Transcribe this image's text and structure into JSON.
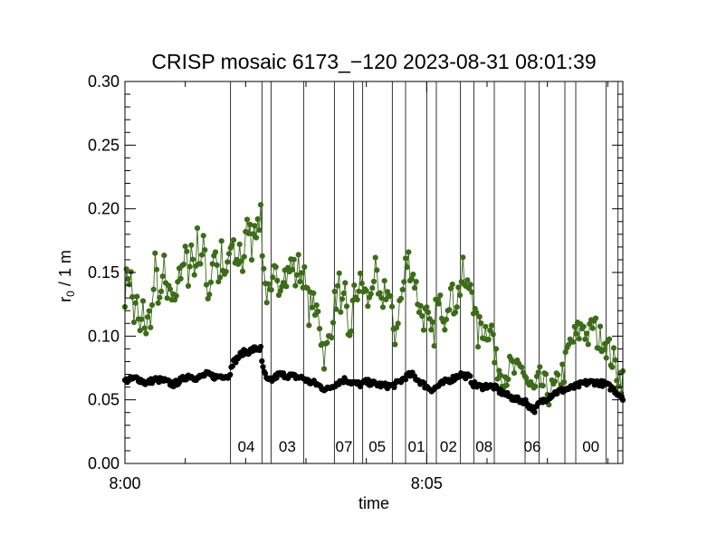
{
  "chart_data": {
    "type": "scatter",
    "title": "CRISP mosaic 6173_−120 2023-08-31 08:01:39",
    "xlabel": "time",
    "ylabel": "r₀ / 1 m",
    "x_unit": "minutes after 8:00",
    "xlim": [
      0,
      8.25
    ],
    "ylim": [
      0,
      0.3
    ],
    "x_tick_labels": [
      {
        "value": 0,
        "label": "8:00"
      },
      {
        "value": 5,
        "label": "8:05"
      }
    ],
    "x_minor_ticks": [
      1,
      2,
      3,
      4,
      6,
      7,
      8
    ],
    "y_ticks": [
      {
        "value": 0.0,
        "label": "0.00"
      },
      {
        "value": 0.05,
        "label": "0.05"
      },
      {
        "value": 0.1,
        "label": "0.10"
      },
      {
        "value": 0.15,
        "label": "0.15"
      },
      {
        "value": 0.2,
        "label": "0.20"
      },
      {
        "value": 0.25,
        "label": "0.25"
      },
      {
        "value": 0.3,
        "label": "0.30"
      }
    ],
    "vertical_lines": [
      1.75,
      2.27,
      2.42,
      2.96,
      3.47,
      3.79,
      3.94,
      4.43,
      4.65,
      5.0,
      5.16,
      5.56,
      5.78,
      6.12,
      6.63,
      6.86,
      7.29,
      7.47,
      7.97,
      8.17
    ],
    "segment_labels": [
      {
        "x": 2.01,
        "label": "04"
      },
      {
        "x": 2.69,
        "label": "03"
      },
      {
        "x": 3.63,
        "label": "07"
      },
      {
        "x": 4.18,
        "label": "05"
      },
      {
        "x": 4.83,
        "label": "01"
      },
      {
        "x": 5.36,
        "label": "02"
      },
      {
        "x": 5.95,
        "label": "08"
      },
      {
        "x": 6.75,
        "label": "06"
      },
      {
        "x": 7.72,
        "label": "00"
      }
    ],
    "series": [
      {
        "name": "green",
        "color": "#3d6b1a",
        "line": true,
        "anchors": [
          [
            0.0,
            0.135
          ],
          [
            0.05,
            0.15
          ],
          [
            0.1,
            0.145
          ],
          [
            0.15,
            0.115
          ],
          [
            0.2,
            0.125
          ],
          [
            0.25,
            0.1
          ],
          [
            0.3,
            0.12
          ],
          [
            0.35,
            0.105
          ],
          [
            0.4,
            0.115
          ],
          [
            0.45,
            0.12
          ],
          [
            0.5,
            0.155
          ],
          [
            0.55,
            0.135
          ],
          [
            0.6,
            0.125
          ],
          [
            0.65,
            0.16
          ],
          [
            0.7,
            0.12
          ],
          [
            0.75,
            0.14
          ],
          [
            0.8,
            0.125
          ],
          [
            0.85,
            0.14
          ],
          [
            0.9,
            0.155
          ],
          [
            0.95,
            0.145
          ],
          [
            1.0,
            0.165
          ],
          [
            1.05,
            0.15
          ],
          [
            1.1,
            0.17
          ],
          [
            1.15,
            0.15
          ],
          [
            1.2,
            0.175
          ],
          [
            1.25,
            0.16
          ],
          [
            1.3,
            0.175
          ],
          [
            1.35,
            0.14
          ],
          [
            1.4,
            0.135
          ],
          [
            1.45,
            0.16
          ],
          [
            1.5,
            0.17
          ],
          [
            1.55,
            0.14
          ],
          [
            1.6,
            0.165
          ],
          [
            1.65,
            0.14
          ],
          [
            1.7,
            0.155
          ],
          [
            1.74,
            0.17
          ],
          [
            1.8,
            0.165
          ],
          [
            1.85,
            0.155
          ],
          [
            1.9,
            0.17
          ],
          [
            1.95,
            0.155
          ],
          [
            2.0,
            0.175
          ],
          [
            2.05,
            0.19
          ],
          [
            2.1,
            0.17
          ],
          [
            2.15,
            0.195
          ],
          [
            2.2,
            0.18
          ],
          [
            2.25,
            0.2
          ],
          [
            2.27,
            0.175
          ],
          [
            2.32,
            0.14
          ],
          [
            2.38,
            0.13
          ],
          [
            2.42,
            0.125
          ],
          [
            2.47,
            0.145
          ],
          [
            2.52,
            0.15
          ],
          [
            2.57,
            0.14
          ],
          [
            2.62,
            0.155
          ],
          [
            2.67,
            0.145
          ],
          [
            2.72,
            0.15
          ],
          [
            2.77,
            0.16
          ],
          [
            2.82,
            0.145
          ],
          [
            2.87,
            0.155
          ],
          [
            2.92,
            0.15
          ],
          [
            2.96,
            0.15
          ],
          [
            3.0,
            0.135
          ],
          [
            3.05,
            0.12
          ],
          [
            3.1,
            0.13
          ],
          [
            3.15,
            0.115
          ],
          [
            3.2,
            0.125
          ],
          [
            3.25,
            0.1
          ],
          [
            3.3,
            0.085
          ],
          [
            3.35,
            0.09
          ],
          [
            3.4,
            0.1
          ],
          [
            3.45,
            0.12
          ],
          [
            3.5,
            0.13
          ],
          [
            3.55,
            0.14
          ],
          [
            3.6,
            0.12
          ],
          [
            3.65,
            0.13
          ],
          [
            3.7,
            0.095
          ],
          [
            3.75,
            0.11
          ],
          [
            3.79,
            0.13
          ],
          [
            3.85,
            0.135
          ],
          [
            3.9,
            0.14
          ],
          [
            3.94,
            0.14
          ],
          [
            4.0,
            0.13
          ],
          [
            4.05,
            0.125
          ],
          [
            4.1,
            0.145
          ],
          [
            4.15,
            0.15
          ],
          [
            4.2,
            0.13
          ],
          [
            4.25,
            0.12
          ],
          [
            4.3,
            0.14
          ],
          [
            4.35,
            0.135
          ],
          [
            4.4,
            0.125
          ],
          [
            4.43,
            0.11
          ],
          [
            4.48,
            0.1
          ],
          [
            4.53,
            0.12
          ],
          [
            4.58,
            0.13
          ],
          [
            4.62,
            0.14
          ],
          [
            4.65,
            0.155
          ],
          [
            4.7,
            0.16
          ],
          [
            4.75,
            0.15
          ],
          [
            4.8,
            0.145
          ],
          [
            4.85,
            0.13
          ],
          [
            4.9,
            0.12
          ],
          [
            4.95,
            0.115
          ],
          [
            5.0,
            0.115
          ],
          [
            5.04,
            0.105
          ],
          [
            5.08,
            0.1
          ],
          [
            5.12,
            0.1
          ],
          [
            5.16,
            0.13
          ],
          [
            5.2,
            0.12
          ],
          [
            5.25,
            0.125
          ],
          [
            5.3,
            0.115
          ],
          [
            5.35,
            0.13
          ],
          [
            5.4,
            0.135
          ],
          [
            5.45,
            0.125
          ],
          [
            5.5,
            0.13
          ],
          [
            5.56,
            0.14
          ],
          [
            5.6,
            0.15
          ],
          [
            5.65,
            0.135
          ],
          [
            5.7,
            0.14
          ],
          [
            5.75,
            0.145
          ],
          [
            5.78,
            0.12
          ],
          [
            5.85,
            0.1
          ],
          [
            5.9,
            0.11
          ],
          [
            5.95,
            0.105
          ],
          [
            6.0,
            0.105
          ],
          [
            6.05,
            0.11
          ],
          [
            6.1,
            0.1
          ],
          [
            6.12,
            0.08
          ],
          [
            6.2,
            0.075
          ],
          [
            6.3,
            0.07
          ],
          [
            6.4,
            0.075
          ],
          [
            6.5,
            0.07
          ],
          [
            6.6,
            0.075
          ],
          [
            6.63,
            0.07
          ],
          [
            6.7,
            0.06
          ],
          [
            6.8,
            0.055
          ],
          [
            6.86,
            0.065
          ],
          [
            6.95,
            0.06
          ],
          [
            7.05,
            0.055
          ],
          [
            7.15,
            0.06
          ],
          [
            7.29,
            0.075
          ],
          [
            7.35,
            0.09
          ],
          [
            7.4,
            0.095
          ],
          [
            7.47,
            0.1
          ],
          [
            7.55,
            0.105
          ],
          [
            7.6,
            0.11
          ],
          [
            7.65,
            0.1
          ],
          [
            7.7,
            0.1
          ],
          [
            7.75,
            0.11
          ],
          [
            7.8,
            0.105
          ],
          [
            7.85,
            0.095
          ],
          [
            7.9,
            0.1
          ],
          [
            7.97,
            0.095
          ],
          [
            8.05,
            0.085
          ],
          [
            8.1,
            0.08
          ],
          [
            8.17,
            0.07
          ],
          [
            8.25,
            0.065
          ]
        ]
      },
      {
        "name": "black",
        "color": "#000000",
        "line": false,
        "anchors": [
          [
            0.0,
            0.065
          ],
          [
            0.2,
            0.067
          ],
          [
            0.35,
            0.063
          ],
          [
            0.5,
            0.066
          ],
          [
            0.65,
            0.065
          ],
          [
            0.8,
            0.062
          ],
          [
            0.95,
            0.066
          ],
          [
            1.05,
            0.069
          ],
          [
            1.2,
            0.067
          ],
          [
            1.35,
            0.07
          ],
          [
            1.5,
            0.068
          ],
          [
            1.65,
            0.069
          ],
          [
            1.74,
            0.068
          ],
          [
            1.75,
            0.077
          ],
          [
            1.85,
            0.082
          ],
          [
            1.95,
            0.087
          ],
          [
            2.05,
            0.088
          ],
          [
            2.15,
            0.09
          ],
          [
            2.25,
            0.09
          ],
          [
            2.27,
            0.078
          ],
          [
            2.35,
            0.065
          ],
          [
            2.42,
            0.065
          ],
          [
            2.55,
            0.07
          ],
          [
            2.7,
            0.069
          ],
          [
            2.85,
            0.068
          ],
          [
            2.96,
            0.067
          ],
          [
            3.05,
            0.064
          ],
          [
            3.15,
            0.063
          ],
          [
            3.25,
            0.06
          ],
          [
            3.35,
            0.058
          ],
          [
            3.47,
            0.062
          ],
          [
            3.55,
            0.064
          ],
          [
            3.65,
            0.066
          ],
          [
            3.79,
            0.063
          ],
          [
            3.9,
            0.062
          ],
          [
            4.0,
            0.064
          ],
          [
            4.1,
            0.063
          ],
          [
            4.2,
            0.062
          ],
          [
            4.3,
            0.061
          ],
          [
            4.43,
            0.061
          ],
          [
            4.55,
            0.064
          ],
          [
            4.65,
            0.068
          ],
          [
            4.75,
            0.07
          ],
          [
            4.85,
            0.066
          ],
          [
            5.0,
            0.06
          ],
          [
            5.1,
            0.058
          ],
          [
            5.16,
            0.06
          ],
          [
            5.3,
            0.064
          ],
          [
            5.45,
            0.067
          ],
          [
            5.56,
            0.07
          ],
          [
            5.7,
            0.068
          ],
          [
            5.78,
            0.062
          ],
          [
            5.9,
            0.06
          ],
          [
            6.0,
            0.061
          ],
          [
            6.12,
            0.06
          ],
          [
            6.2,
            0.057
          ],
          [
            6.35,
            0.053
          ],
          [
            6.5,
            0.05
          ],
          [
            6.63,
            0.049
          ],
          [
            6.7,
            0.045
          ],
          [
            6.8,
            0.042
          ],
          [
            6.86,
            0.047
          ],
          [
            6.95,
            0.05
          ],
          [
            7.1,
            0.055
          ],
          [
            7.29,
            0.058
          ],
          [
            7.45,
            0.06
          ],
          [
            7.6,
            0.063
          ],
          [
            7.75,
            0.064
          ],
          [
            7.9,
            0.063
          ],
          [
            7.97,
            0.062
          ],
          [
            8.1,
            0.058
          ],
          [
            8.17,
            0.055
          ],
          [
            8.25,
            0.052
          ]
        ]
      }
    ]
  }
}
